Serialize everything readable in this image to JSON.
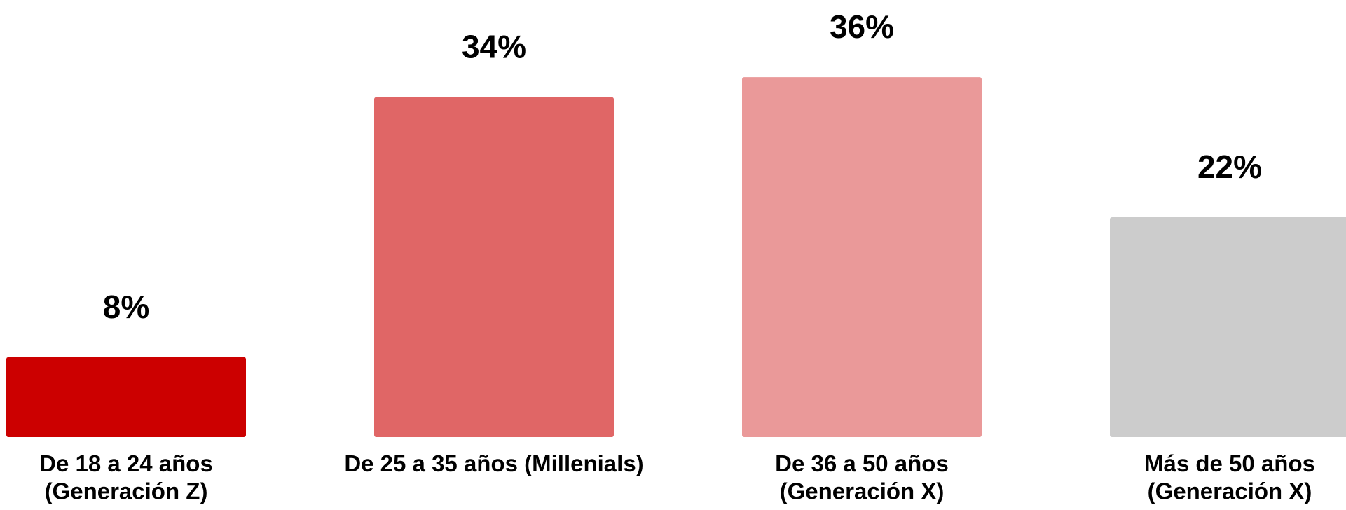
{
  "chart_data": {
    "type": "bar",
    "categories": [
      "De 18 a 24 años\n(Generación Z)",
      "De 25 a 35 años (Millenials)",
      "De 36 a 50 años\n(Generación X)",
      "Más de 50 años\n(Generación X)"
    ],
    "values": [
      8,
      34,
      36,
      22
    ],
    "value_labels": [
      "8%",
      "34%",
      "36%",
      "22%"
    ],
    "colors": [
      "#cc0000",
      "#e06666",
      "#ea9999",
      "#cccccc"
    ],
    "ylim": [
      0,
      40
    ]
  }
}
